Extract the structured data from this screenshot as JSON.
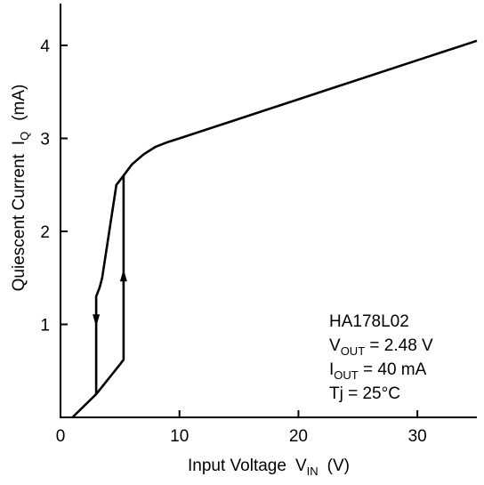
{
  "chart_data": {
    "type": "line",
    "title": "",
    "xlabel": "Input Voltage",
    "xlabel_symbol": "V",
    "xlabel_symbol_sub": "IN",
    "xlabel_unit": "(V)",
    "ylabel": "Quiescent Current",
    "ylabel_symbol": "I",
    "ylabel_symbol_sub": "Q",
    "ylabel_unit": "(mA)",
    "xlim": [
      0,
      35
    ],
    "ylim": [
      0,
      4.45
    ],
    "xticks": [
      0,
      10,
      20,
      30
    ],
    "yticks": [
      1,
      2,
      3,
      4
    ],
    "xtick_labels": [
      "0",
      "10",
      "20",
      "30"
    ],
    "ytick_labels": [
      "1",
      "2",
      "3",
      "4"
    ],
    "grid": false,
    "series": [
      {
        "points": [
          {
            "x": 1.0,
            "y": 0.0
          },
          {
            "x": 3.0,
            "y": 0.25
          },
          {
            "x": 5.0,
            "y": 0.57
          },
          {
            "x": 5.3,
            "y": 0.62
          },
          {
            "x": 5.3,
            "y": 2.6
          },
          {
            "x": 6.0,
            "y": 2.72
          },
          {
            "x": 7.0,
            "y": 2.83
          },
          {
            "x": 8.0,
            "y": 2.91
          },
          {
            "x": 9.0,
            "y": 2.96
          },
          {
            "x": 10.0,
            "y": 3.0
          },
          {
            "x": 20.0,
            "y": 3.42
          },
          {
            "x": 30.0,
            "y": 3.84
          },
          {
            "x": 35.0,
            "y": 4.05
          }
        ]
      },
      {
        "points": [
          {
            "x": 5.3,
            "y": 2.6
          },
          {
            "x": 4.7,
            "y": 2.5
          },
          {
            "x": 3.5,
            "y": 1.5
          },
          {
            "x": 3.3,
            "y": 1.4
          },
          {
            "x": 3.0,
            "y": 1.3
          },
          {
            "x": 3.0,
            "y": 0.25
          }
        ]
      }
    ],
    "arrows": [
      {
        "direction": "up",
        "x": 5.3,
        "y": 1.5
      },
      {
        "direction": "down",
        "x": 3.0,
        "y": 1.07
      }
    ],
    "annotation": {
      "device": "HA178L02",
      "vout_symbol": "V",
      "vout_sub": "OUT",
      "vout_value": " = 2.48 V",
      "iout_symbol": "I",
      "iout_sub": "OUT",
      "iout_value": " = 40 mA",
      "tj": "Tj = 25°C"
    }
  }
}
